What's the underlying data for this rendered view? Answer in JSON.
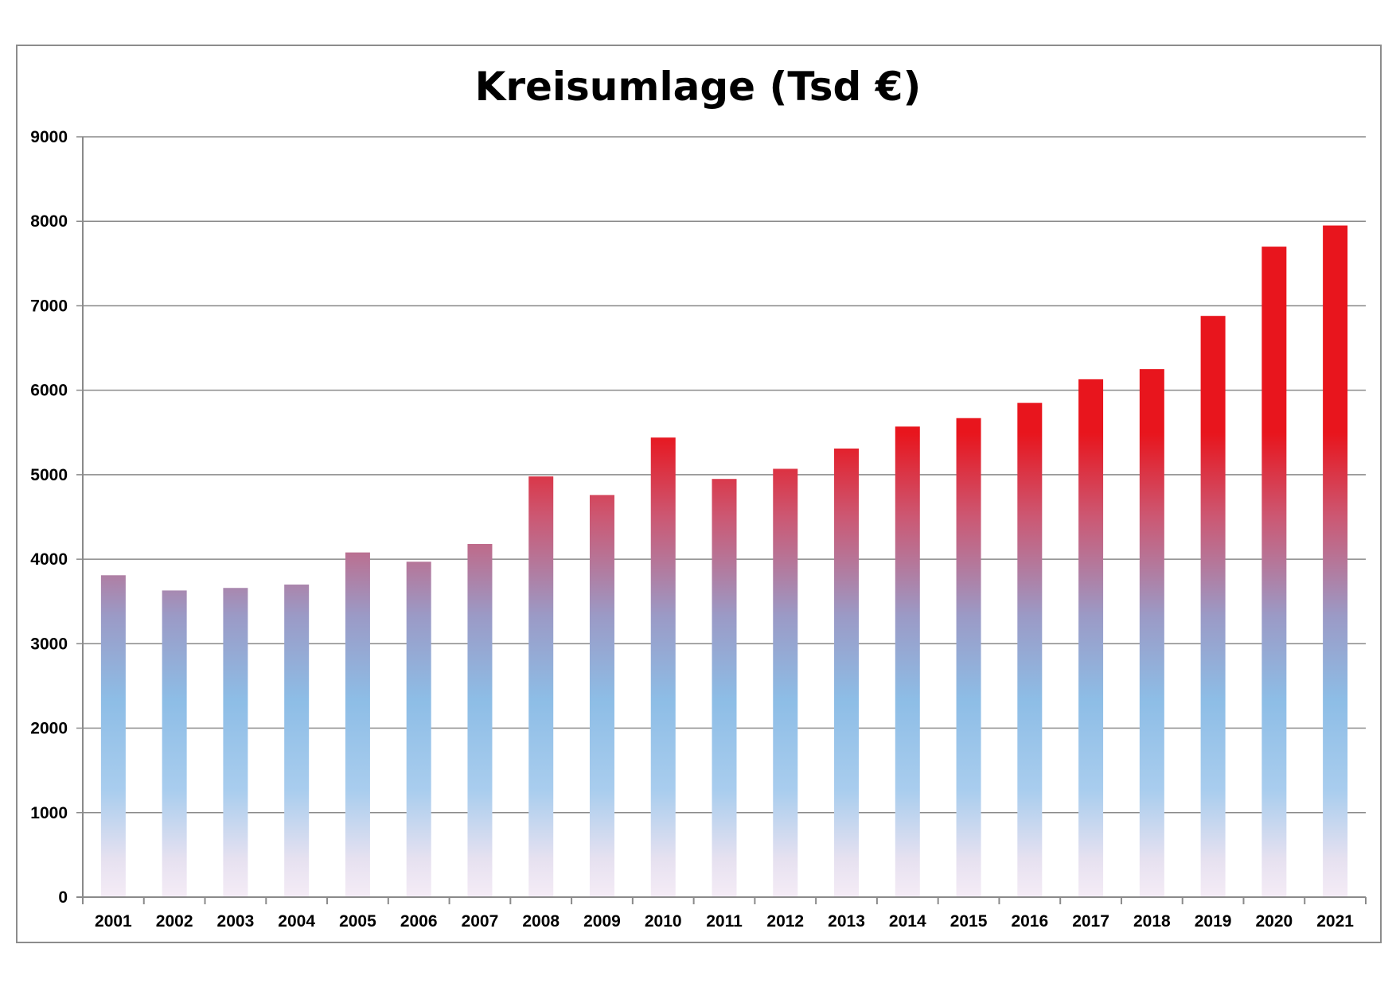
{
  "chart_data": {
    "type": "bar",
    "title": "Kreisumlage (Tsd €)",
    "xlabel": "",
    "ylabel": "",
    "ylim": [
      0,
      9000
    ],
    "y_ticks": [
      "0",
      "1000",
      "2000",
      "3000",
      "4000",
      "5000",
      "6000",
      "7000",
      "8000",
      "9000"
    ],
    "grid": true,
    "legend": "none",
    "categories": [
      "2001",
      "2002",
      "2003",
      "2004",
      "2005",
      "2006",
      "2007",
      "2008",
      "2009",
      "2010",
      "2011",
      "2012",
      "2013",
      "2014",
      "2015",
      "2016",
      "2017",
      "2018",
      "2019",
      "2020",
      "2021"
    ],
    "values": [
      3810,
      3630,
      3660,
      3700,
      4080,
      3970,
      4180,
      4980,
      4760,
      5440,
      4950,
      5070,
      5310,
      5570,
      5670,
      5850,
      6130,
      6250,
      6880,
      7700,
      7950
    ],
    "colors": {
      "bar_top": "#e8151d",
      "bar_mid": "#9b9ac6",
      "bar_low": "#8dbde6",
      "bar_bottom": "#f5ecf6"
    }
  }
}
